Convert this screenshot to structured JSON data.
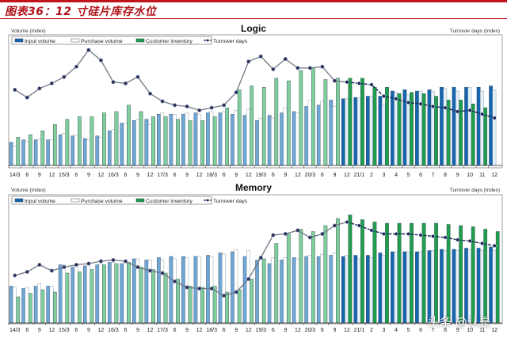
{
  "figure_title": "图表36：12 寸硅片库存水位",
  "watermark": "头条 @认是",
  "colors": {
    "input_hist": "#6ea6d6",
    "input_recent": "#1565b0",
    "purchase_hist": "#ffffff",
    "purchase_recent": "#e4f1fa",
    "inventory_hist": "#7fcf9c",
    "inventory_recent": "#1f9e4d",
    "line_hist": "#707684",
    "line_recent": "#1a2452",
    "marker": "#27305e"
  },
  "chart_data": [
    {
      "type": "bar+line",
      "title": "Logic",
      "ylabel_left": "Volume (Index)",
      "ylabel_right": "Turnover days (Index)",
      "y_scale": "relative index, no tick labels shown (0-100 = plot height)",
      "legend": [
        "Input volume",
        "Purchase volume",
        "Customer inventory",
        "Turnover days"
      ],
      "legend_position": "top-left",
      "grid": false,
      "recent_highlight_from": "20/12",
      "categories": [
        "14/3",
        "6",
        "9",
        "12",
        "15/3",
        "6",
        "9",
        "12",
        "16/3",
        "6",
        "9",
        "12",
        "17/3",
        "6",
        "9",
        "12",
        "18/3",
        "6",
        "9",
        "12",
        "19/3",
        "6",
        "9",
        "12",
        "20/3",
        "6",
        "9",
        "12",
        "21/1",
        "2",
        "3",
        "4",
        "5",
        "6",
        "7",
        "8",
        "9",
        "10",
        "11",
        "12"
      ],
      "series": [
        {
          "name": "Input volume",
          "kind": "bar",
          "values": [
            18,
            20,
            20,
            20,
            24,
            23,
            21,
            23,
            27,
            33,
            35,
            36,
            40,
            40,
            40,
            41,
            41,
            41,
            40,
            39,
            35,
            39,
            41,
            42,
            46,
            47,
            51,
            52,
            53,
            54,
            54,
            58,
            59,
            58,
            59,
            61,
            61,
            61,
            61,
            62
          ]
        },
        {
          "name": "Purchase volume",
          "kind": "bar",
          "values": [
            15,
            19,
            20,
            20,
            25,
            24,
            20,
            22,
            28,
            33,
            36,
            32,
            41,
            40,
            41,
            40,
            42,
            42,
            43,
            44,
            37,
            37,
            45,
            41,
            51,
            50,
            46,
            52,
            53,
            54,
            48,
            57,
            55,
            58,
            58,
            60,
            58,
            61,
            58,
            59
          ]
        },
        {
          "name": "Customer inventory",
          "kind": "bar",
          "values": [
            22,
            24,
            27,
            32,
            36,
            38,
            38,
            41,
            42,
            47,
            42,
            38,
            38,
            36,
            35,
            35,
            38,
            45,
            59,
            62,
            61,
            68,
            66,
            74,
            76,
            67,
            68,
            68,
            68,
            61,
            61,
            56,
            57,
            56,
            54,
            51,
            51,
            48,
            45,
            null
          ]
        },
        {
          "name": "Turnover days",
          "kind": "line",
          "values": [
            59,
            53,
            60,
            64,
            69,
            77,
            90,
            82,
            65,
            64,
            69,
            56,
            50,
            47,
            46,
            43,
            45,
            47,
            57,
            81,
            85,
            75,
            83,
            76,
            76,
            77,
            66,
            65,
            64,
            63,
            54,
            52,
            49,
            48,
            46,
            45,
            42,
            43,
            40,
            37
          ]
        }
      ]
    },
    {
      "type": "bar+line",
      "title": "Memory",
      "ylabel_left": "Volume (Index)",
      "ylabel_right": "Turnover days (Index)",
      "y_scale": "relative index, no tick labels shown (0-100 = plot height)",
      "legend": [
        "Input volume",
        "Purchase volume",
        "Customer inventory",
        "Turnover days"
      ],
      "legend_position": "top-left",
      "grid": false,
      "recent_highlight_from": "20/12",
      "categories": [
        "14/3",
        "6",
        "9",
        "12",
        "15/3",
        "6",
        "9",
        "12",
        "16/3",
        "6",
        "9",
        "12",
        "17/3",
        "6",
        "9",
        "12",
        "18/3",
        "6",
        "9",
        "12",
        "19/3",
        "6",
        "9",
        "12",
        "20/3",
        "6",
        "9",
        "12",
        "21/1",
        "2",
        "3",
        "4",
        "5",
        "6",
        "7",
        "8",
        "9",
        "10",
        "11",
        "12"
      ],
      "series": [
        {
          "name": "Input volume",
          "kind": "bar",
          "values": [
            31,
            29,
            31,
            31,
            49,
            47,
            48,
            49,
            51,
            50,
            54,
            53,
            55,
            56,
            56,
            56,
            57,
            59,
            60,
            56,
            53,
            50,
            53,
            55,
            56,
            56,
            57,
            56,
            57,
            57,
            59,
            60,
            60,
            60,
            61,
            62,
            62,
            63,
            63,
            64
          ]
        },
        {
          "name": "Purchase volume",
          "kind": "bar",
          "values": [
            30,
            30,
            33,
            31,
            49,
            48,
            49,
            50,
            51,
            51,
            54,
            53,
            53,
            54,
            55,
            56,
            56,
            58,
            62,
            61,
            55,
            55,
            55,
            54,
            57,
            58,
            59,
            57,
            54,
            55,
            57,
            60,
            60,
            60,
            61,
            61,
            61,
            62,
            61,
            61
          ]
        },
        {
          "name": "Customer inventory",
          "kind": "bar",
          "values": [
            22,
            25,
            28,
            26,
            42,
            43,
            45,
            49,
            50,
            51,
            47,
            45,
            42,
            37,
            31,
            30,
            31,
            26,
            28,
            37,
            54,
            67,
            75,
            79,
            77,
            82,
            88,
            91,
            87,
            85,
            84,
            84,
            84,
            84,
            84,
            83,
            82,
            81,
            79,
            77
          ]
        },
        {
          "name": "Turnover days",
          "kind": "line",
          "values": [
            40,
            43,
            49,
            44,
            47,
            49,
            50,
            52,
            53,
            52,
            47,
            44,
            42,
            35,
            30,
            29,
            29,
            23,
            26,
            37,
            55,
            74,
            75,
            78,
            72,
            75,
            82,
            85,
            82,
            78,
            75,
            75,
            75,
            74,
            73,
            72,
            70,
            69,
            67,
            65
          ]
        }
      ]
    }
  ]
}
